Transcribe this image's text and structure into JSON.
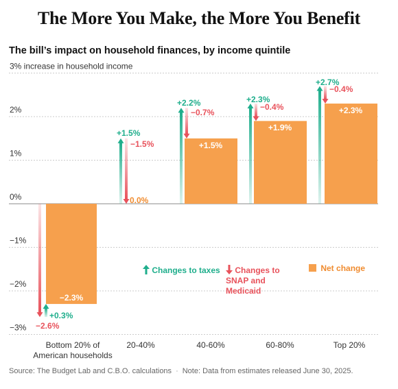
{
  "title": "The More You Make, the More You Benefit",
  "source": {
    "text": "Source: The Budget Lab and C.B.O. calculations",
    "note": "Note: Data from estimates released June 30, 2025."
  },
  "legend": {
    "taxes": "Changes to taxes",
    "snap": "Changes to SNAP and Medicaid",
    "net": "Net change"
  },
  "colors": {
    "taxes": "#1fae8c",
    "snap": "#e8525b",
    "net": "#f6a04d",
    "net_label_light": "#ffffff",
    "net_label_outside": "#f08c30"
  },
  "chart_data": {
    "type": "bar",
    "title": "The bill’s impact on household finances, by income quintile",
    "ylabel": "",
    "y_ticks": [
      "3% increase in household income",
      "2%",
      "1%",
      "0%",
      "−1%",
      "−2%",
      "−3%"
    ],
    "ylim": [
      -3,
      3
    ],
    "grid": true,
    "legend_position": "center-right",
    "categories": [
      "Bottom 20% of American households",
      "20-40%",
      "40-60%",
      "60-80%",
      "Top 20%"
    ],
    "series": [
      {
        "name": "Changes to taxes",
        "values": [
          0.3,
          1.5,
          2.2,
          2.3,
          2.7
        ],
        "labels": [
          "+0.3%",
          "+1.5%",
          "+2.2%",
          "+2.3%",
          "+2.7%"
        ]
      },
      {
        "name": "Changes to SNAP and Medicaid",
        "values": [
          -2.6,
          -1.5,
          -0.7,
          -0.4,
          -0.4
        ],
        "labels": [
          "−2.6%",
          "−1.5%",
          "−0.7%",
          "−0.4%",
          "−0.4%"
        ]
      },
      {
        "name": "Net change",
        "values": [
          -2.3,
          0.0,
          1.5,
          1.9,
          2.3
        ],
        "labels": [
          "−2.3%",
          "0.0%",
          "+1.5%",
          "+1.9%",
          "+2.3%"
        ]
      }
    ]
  }
}
